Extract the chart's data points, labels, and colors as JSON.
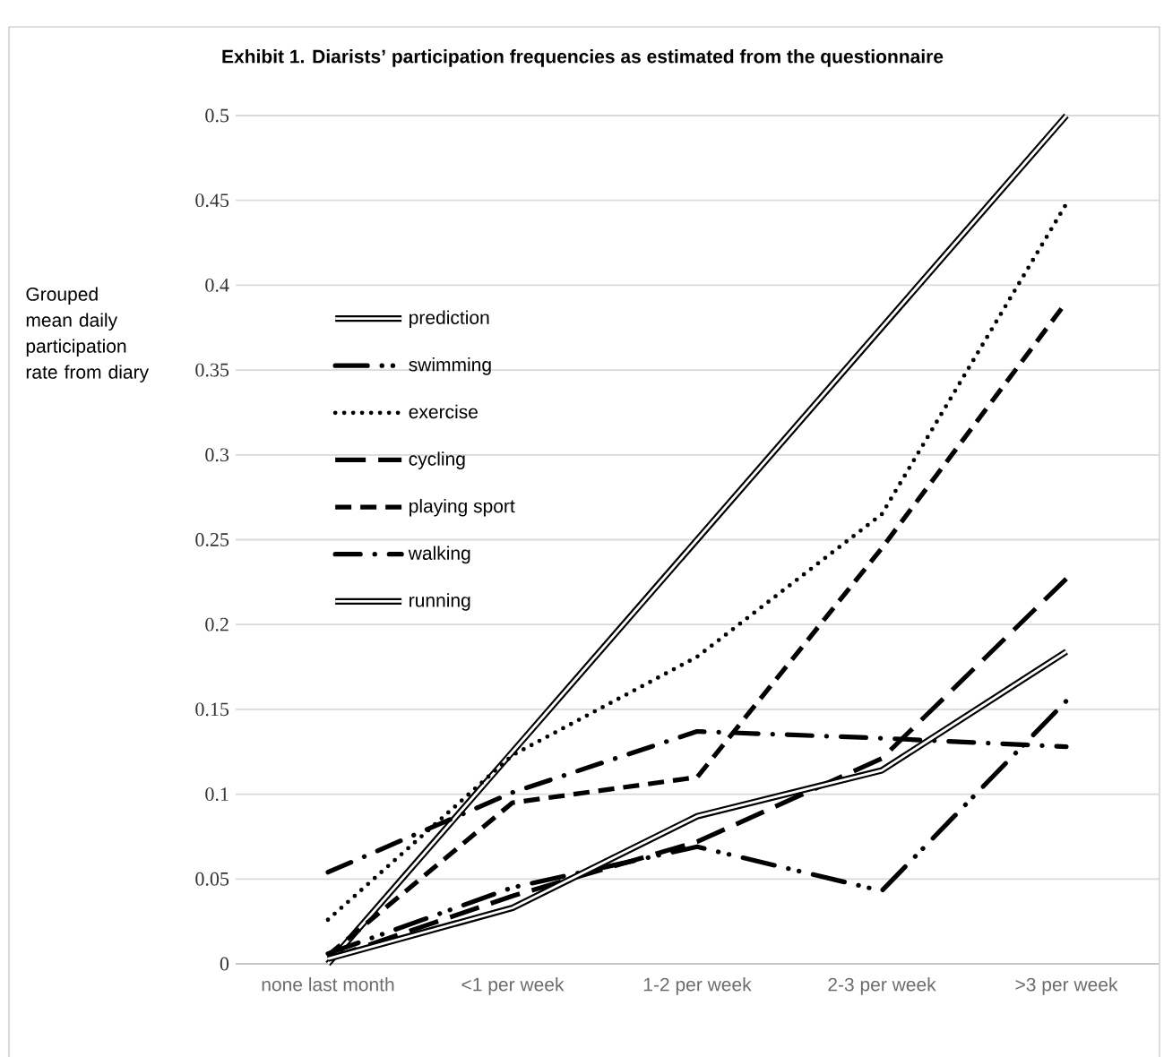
{
  "chart_data": {
    "type": "line",
    "title": "**Exhibit 1.  Diarists’ participation frequencies as estimated from the questionnaire**",
    "ylabel": "Grouped mean daily participation rate from diary",
    "categories": [
      "none last month",
      "<1 per week",
      "1-2 per week",
      "2-3 per week",
      ">3 per week"
    ],
    "series": [
      {
        "name": "prediction",
        "color": "#000000",
        "line_style": "solid",
        "values": [
          0,
          0.125,
          0.25,
          0.375,
          0.5
        ]
      },
      {
        "name": "swimming",
        "color": "#000000",
        "line_style": "dash dot dot",
        "values": [
          0.006,
          0.045,
          0.069,
          0.043,
          0.155
        ]
      },
      {
        "name": "exercise",
        "color": "#000000",
        "line_style": "dotted",
        "values": [
          0.026,
          0.123,
          0.181,
          0.265,
          0.448
        ]
      },
      {
        "name": "cycling",
        "color": "#000000",
        "line_style": "long dash",
        "values": [
          0.003,
          0.04,
          0.072,
          0.121,
          0.227
        ]
      },
      {
        "name": "playing sport",
        "color": "#000000",
        "line_style": "dashed",
        "values": [
          0.005,
          0.095,
          0.11,
          0.245,
          0.39
        ]
      },
      {
        "name": "walking",
        "color": "#000000",
        "line_style": "dash dot",
        "values": [
          0.054,
          0.101,
          0.137,
          0.133,
          0.128
        ]
      },
      {
        "name": "running",
        "color": "#000000",
        "line_style": "solid",
        "values": [
          0.003,
          0.033,
          0.087,
          0.114,
          0.184
        ]
      }
    ],
    "ylim": [
      0,
      0.5
    ],
    "yticks": [
      0,
      0.05,
      0.1,
      0.15,
      0.2,
      0.25,
      0.3,
      0.35,
      0.4,
      0.45,
      0.5
    ],
    "grid": "y",
    "legend": "left",
    "marker": "none"
  }
}
